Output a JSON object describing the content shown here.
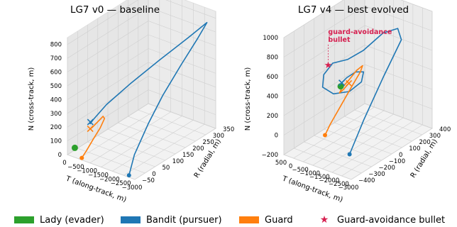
{
  "figure": {
    "colors": {
      "lady": "#2ca02c",
      "bandit": "#1f77b4",
      "guard": "#ff7f0e",
      "bullet": "#d62050",
      "pane": "#f2f2f2",
      "grid": "#cfcfcf"
    }
  },
  "legend": {
    "lady": "Lady (evader)",
    "bandit": "Bandit (pursuer)",
    "guard": "Guard",
    "bullet": "Guard-avoidance bullet"
  },
  "chart_data": [
    {
      "type": "line3d",
      "title": "LG7  v0 — baseline",
      "xlabel": "T (along-track, m)",
      "ylabel": "R (radial, m)",
      "zlabel": "N (cross-track, m)",
      "x_ticks": [
        "0",
        "−500",
        "−1000",
        "−1500",
        "−2000",
        "−2500",
        "−3000"
      ],
      "y_ticks": [
        "−50",
        "0",
        "50",
        "100",
        "150",
        "200",
        "250",
        "300",
        "350"
      ],
      "z_ticks": [
        "0",
        "100",
        "200",
        "300",
        "400",
        "500",
        "600",
        "700",
        "800"
      ],
      "xlim": [
        0,
        -3000
      ],
      "ylim": [
        -50,
        350
      ],
      "zlim": [
        0,
        850
      ],
      "series": [
        {
          "name": "Bandit (pursuer)",
          "points": [
            [
              -2650,
              -40,
              0
            ],
            [
              -2620,
              -10,
              120
            ],
            [
              -2610,
              60,
              280
            ],
            [
              -2620,
              130,
              420
            ],
            [
              -2630,
              220,
              560
            ],
            [
              -2650,
              300,
              680
            ],
            [
              -2700,
              340,
              760
            ],
            [
              -2600,
              260,
              720
            ],
            [
              -2300,
              150,
              640
            ],
            [
              -1800,
              60,
              520
            ],
            [
              -1200,
              10,
              380
            ],
            [
              -700,
              0,
              250
            ],
            [
              -520,
              5,
              205
            ],
            [
              -480,
              10,
              210
            ]
          ]
        },
        {
          "name": "Guard",
          "points": [
            [
              -550,
              -40,
              0
            ],
            [
              -560,
              -20,
              30
            ],
            [
              -600,
              10,
              90
            ],
            [
              -650,
              40,
              150
            ],
            [
              -660,
              60,
              200
            ],
            [
              -640,
              55,
              220
            ],
            [
              -600,
              30,
              195
            ],
            [
              -560,
              10,
              175
            ],
            [
              -520,
              5,
              168
            ]
          ]
        }
      ],
      "markers": [
        {
          "name": "Lady (evader)",
          "point": [
            -150,
            -30,
            40
          ]
        },
        {
          "name": "Bandit start",
          "point": [
            -2650,
            -40,
            0
          ]
        },
        {
          "name": "Guard start",
          "point": [
            -550,
            -40,
            0
          ]
        },
        {
          "name": "Bandit end",
          "point": [
            -480,
            10,
            210
          ]
        },
        {
          "name": "Guard end",
          "point": [
            -520,
            5,
            168
          ]
        }
      ]
    },
    {
      "type": "line3d",
      "title": "LG7  v4 — best evolved",
      "xlabel": "T (along-track, m)",
      "ylabel": "R (radial, m)",
      "zlabel": "N (cross-track, m)",
      "x_ticks": [
        "500",
        "0",
        "−500",
        "−1000",
        "−1500",
        "−2000",
        "−2500",
        "−3000"
      ],
      "y_ticks": [
        "−400",
        "−300",
        "−200",
        "−100",
        "0",
        "100",
        "200",
        "300",
        "400"
      ],
      "z_ticks": [
        "−200",
        "0",
        "200",
        "400",
        "600",
        "800",
        "1000"
      ],
      "xlim": [
        500,
        -3000
      ],
      "ylim": [
        -400,
        400
      ],
      "zlim": [
        -200,
        1000
      ],
      "annotation": "guard-avoidance\nbullet",
      "series": [
        {
          "name": "Bandit (pursuer)",
          "points": [
            [
              -2650,
              -350,
              0
            ],
            [
              -2600,
              -200,
              250
            ],
            [
              -2550,
              0,
              550
            ],
            [
              -2450,
              200,
              800
            ],
            [
              -2000,
              250,
              850
            ],
            [
              -1500,
              200,
              800
            ],
            [
              -1000,
              100,
              650
            ],
            [
              -600,
              20,
              580
            ],
            [
              -200,
              -50,
              560
            ],
            [
              -100,
              -120,
              480
            ],
            [
              -200,
              -150,
              380
            ],
            [
              -500,
              -100,
              300
            ],
            [
              -800,
              0,
              280
            ],
            [
              -900,
              100,
              320
            ],
            [
              -750,
              150,
              380
            ],
            [
              -500,
              120,
              380
            ],
            [
              -350,
              60,
              350
            ],
            [
              -300,
              20,
              320
            ]
          ]
        },
        {
          "name": "Guard",
          "points": [
            [
              -850,
              -250,
              0
            ],
            [
              -860,
              -200,
              80
            ],
            [
              -870,
              -100,
              200
            ],
            [
              -900,
              0,
              330
            ],
            [
              -850,
              100,
              420
            ],
            [
              -700,
              150,
              440
            ],
            [
              -550,
              120,
              400
            ],
            [
              -450,
              60,
              330
            ],
            [
              -420,
              0,
              290
            ],
            [
              -500,
              -40,
              270
            ],
            [
              -600,
              -20,
              300
            ],
            [
              -560,
              40,
              320
            ],
            [
              -460,
              60,
              300
            ]
          ]
        }
      ],
      "markers": [
        {
          "name": "Lady (evader)",
          "point": [
            -350,
            0,
            300
          ]
        },
        {
          "name": "Bandit start",
          "point": [
            -2650,
            -350,
            0
          ]
        },
        {
          "name": "Guard start",
          "point": [
            -850,
            -250,
            0
          ]
        },
        {
          "name": "Bandit end",
          "point": [
            -300,
            20,
            320
          ]
        },
        {
          "name": "Guard end",
          "point": [
            -460,
            60,
            300
          ]
        },
        {
          "name": "Guard-avoidance bullet",
          "point": [
            -120,
            -80,
            560
          ]
        }
      ]
    }
  ]
}
